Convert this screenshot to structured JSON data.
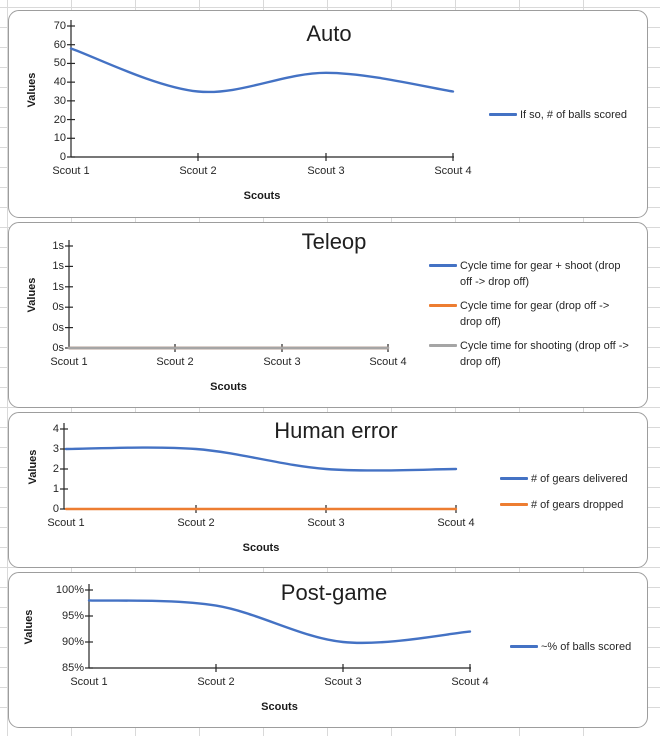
{
  "worksheet": {
    "description": "Excel worksheet with four embedded line charts",
    "gridline_color": "#d9d9d9"
  },
  "palette": {
    "blue": "#4472C4",
    "orange": "#ED7D31",
    "gray": "#A5A5A5",
    "axis": "#262626",
    "chart_border": "#9d9d9d"
  },
  "chart_data": [
    {
      "type": "line",
      "title": "Auto",
      "xlabel": "Scouts",
      "ylabel": "Values",
      "categories": [
        "Scout 1",
        "Scout 2",
        "Scout 3",
        "Scout 4"
      ],
      "ylim": [
        0,
        70
      ],
      "y_tick_labels": [
        "70",
        "60",
        "50",
        "40",
        "30",
        "20",
        "10",
        "0"
      ],
      "grid": false,
      "smooth": true,
      "legend_position": "right",
      "series": [
        {
          "name": "If so, # of balls scored",
          "color": "#4472C4",
          "values": [
            58,
            35,
            45,
            35
          ]
        }
      ]
    },
    {
      "type": "line",
      "title": "Teleop",
      "xlabel": "Scouts",
      "ylabel": "Values",
      "categories": [
        "Scout 1",
        "Scout 2",
        "Scout 3",
        "Scout 4"
      ],
      "ylim": [
        0,
        1
      ],
      "y_tick_labels": [
        "1s",
        "1s",
        "1s",
        "0s",
        "0s",
        "0s"
      ],
      "grid": false,
      "smooth": true,
      "legend_position": "right",
      "series": [
        {
          "name": "Cycle time for gear + shoot (drop off -> drop off)",
          "color": "#4472C4",
          "values": [
            0,
            0,
            0,
            0
          ]
        },
        {
          "name": "Cycle time for gear (drop off -> drop off)",
          "color": "#ED7D31",
          "values": [
            0,
            0,
            0,
            0
          ]
        },
        {
          "name": "Cycle time for shooting (drop off -> drop off)",
          "color": "#A5A5A5",
          "values": [
            0,
            0,
            0,
            0
          ]
        }
      ]
    },
    {
      "type": "line",
      "title": "Human error",
      "xlabel": "Scouts",
      "ylabel": "Values",
      "categories": [
        "Scout 1",
        "Scout 2",
        "Scout 3",
        "Scout 4"
      ],
      "ylim": [
        0,
        4
      ],
      "y_tick_labels": [
        "4",
        "3",
        "2",
        "1",
        "0"
      ],
      "grid": false,
      "smooth": true,
      "legend_position": "right",
      "series": [
        {
          "name": "# of gears delivered",
          "color": "#4472C4",
          "values": [
            3,
            3,
            2,
            2
          ]
        },
        {
          "name": "# of gears dropped",
          "color": "#ED7D31",
          "values": [
            0,
            0,
            0,
            0
          ]
        }
      ]
    },
    {
      "type": "line",
      "title": "Post-game",
      "xlabel": "Scouts",
      "ylabel": "Values",
      "categories": [
        "Scout 1",
        "Scout 2",
        "Scout 3",
        "Scout 4"
      ],
      "ylim": [
        85,
        100
      ],
      "y_tick_labels": [
        "100%",
        "95%",
        "90%",
        "85%"
      ],
      "grid": false,
      "smooth": true,
      "legend_position": "right",
      "series": [
        {
          "name": "~% of balls scored",
          "color": "#4472C4",
          "values": [
            98,
            97,
            90,
            92
          ]
        }
      ]
    }
  ]
}
